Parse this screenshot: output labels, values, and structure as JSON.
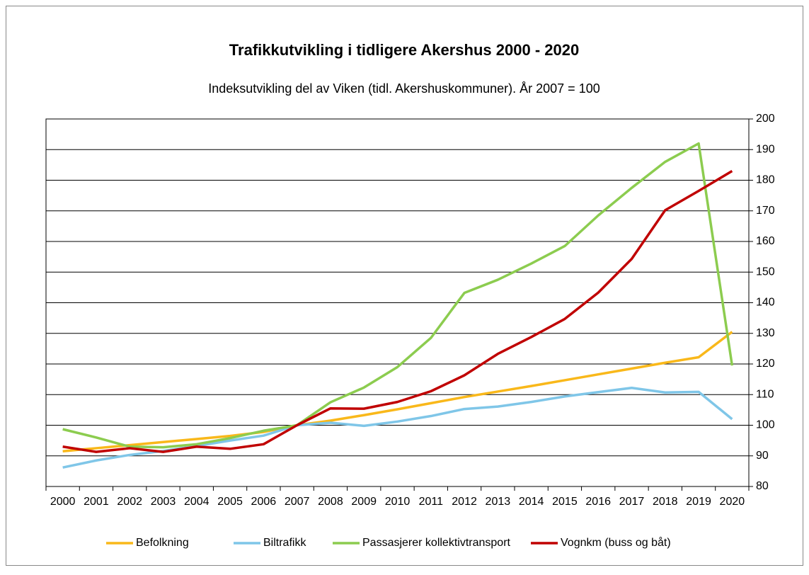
{
  "chart_data": {
    "type": "line",
    "title": "Trafikkutvikling i tidligere Akershus 2000 - 2020",
    "subtitle": "Indeksutvikling del av Viken (tidl. Akershuskommuner). År 2007 = 100",
    "categories": [
      "2000",
      "2001",
      "2002",
      "2003",
      "2004",
      "2005",
      "2006",
      "2007",
      "2008",
      "2009",
      "2010",
      "2011",
      "2012",
      "2013",
      "2014",
      "2015",
      "2016",
      "2017",
      "2018",
      "2019",
      "2020"
    ],
    "series": [
      {
        "name": "Befolkning",
        "color": "#f9b81a",
        "values": [
          91.5,
          92.5,
          93.5,
          94.5,
          95.5,
          96.5,
          97.8,
          100,
          101.5,
          103.3,
          105.2,
          107.2,
          109.2,
          111,
          112.8,
          114.7,
          116.6,
          118.5,
          120.4,
          122.2,
          130.5
        ]
      },
      {
        "name": "Biltrafikk",
        "color": "#7fc6e8",
        "values": [
          86.2,
          88.5,
          90.3,
          91.6,
          93.2,
          95,
          96.6,
          100,
          100.8,
          99.8,
          101.2,
          103,
          105.3,
          106.1,
          107.6,
          109.4,
          110.8,
          112.2,
          110.7,
          110.9,
          102
        ]
      },
      {
        "name": "Passasjerer kollektivtransport",
        "color": "#8ccc4f",
        "values": [
          98.7,
          96,
          93,
          92.8,
          93.8,
          95.8,
          98.2,
          100,
          107.5,
          112.3,
          119,
          128.5,
          143.2,
          147.5,
          152.8,
          158.5,
          168.5,
          177.5,
          186,
          192,
          119.5
        ]
      },
      {
        "name": "Vognkm (buss og båt)",
        "color": "#c00000",
        "values": [
          93,
          91.3,
          92.5,
          91.3,
          93,
          92.3,
          93.8,
          100,
          105.5,
          105.4,
          107.6,
          111.1,
          116.3,
          123.3,
          128.8,
          134.7,
          143.3,
          154.3,
          170.2,
          176.5,
          183
        ]
      }
    ],
    "ylim": [
      80,
      200
    ],
    "yticks": [
      80,
      90,
      100,
      110,
      120,
      130,
      140,
      150,
      160,
      170,
      180,
      190,
      200
    ],
    "grid": true,
    "legend": "bottom"
  }
}
